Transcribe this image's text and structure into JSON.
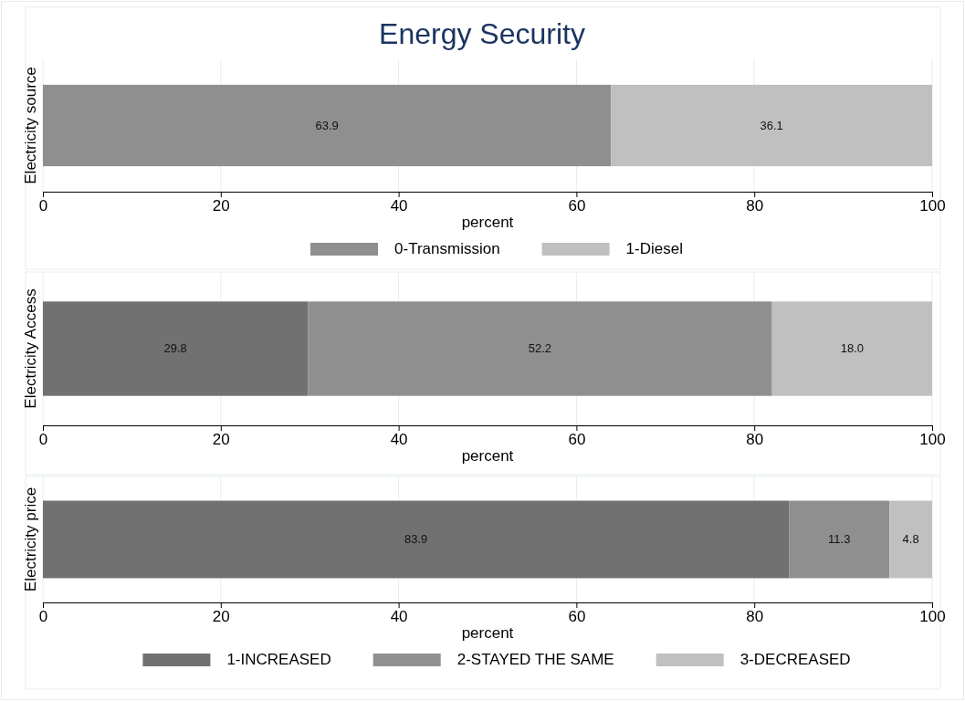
{
  "chart_data": [
    {
      "type": "bar",
      "title": "Energy Security",
      "orientation": "horizontal",
      "stacked": true,
      "categories": [
        null
      ],
      "xlabel": "percent",
      "ylabel": "Electricity source",
      "xlim": [
        0,
        100
      ],
      "xticks": [
        0,
        20,
        40,
        60,
        80,
        100
      ],
      "grid": "x",
      "data_labels": true,
      "legend": "bottom",
      "series": [
        {
          "name": "0-Transmission",
          "color": "#8f8f8f",
          "values": [
            63.9
          ]
        },
        {
          "name": "1-Diesel",
          "color": "#c0c0c0",
          "values": [
            36.1
          ]
        }
      ]
    },
    {
      "type": "bar",
      "orientation": "horizontal",
      "stacked": true,
      "categories": [
        null
      ],
      "xlabel": "percent",
      "ylabel": "Electricity Access",
      "xlim": [
        0,
        100
      ],
      "xticks": [
        0,
        20,
        40,
        60,
        80,
        100
      ],
      "grid": "x",
      "series": [
        {
          "color": "#717171",
          "values": [
            29.8
          ],
          "value_labels": [
            "29.8"
          ]
        },
        {
          "color": "#8f8f8f",
          "values": [
            52.2
          ],
          "value_labels": [
            "52.2"
          ]
        },
        {
          "color": "#c0c0c0",
          "values": [
            18.0
          ],
          "value_labels": [
            "18.0"
          ]
        }
      ]
    },
    {
      "type": "bar",
      "orientation": "horizontal",
      "stacked": true,
      "categories": [
        null
      ],
      "xlabel": "percent",
      "ylabel": "Electricity price",
      "xlim": [
        0,
        100
      ],
      "xticks": [
        0,
        20,
        40,
        60,
        80,
        100
      ],
      "grid": "x",
      "data_labels": true,
      "legend": "bottom",
      "series": [
        {
          "name": "1-INCREASED",
          "color": "#717171",
          "values": [
            83.9
          ]
        },
        {
          "name": "2-STAYED THE SAME",
          "color": "#8f8f8f",
          "values": [
            11.3
          ]
        },
        {
          "name": "3-DECREASED",
          "color": "#c0c0c0",
          "values": [
            4.8
          ]
        }
      ]
    }
  ]
}
